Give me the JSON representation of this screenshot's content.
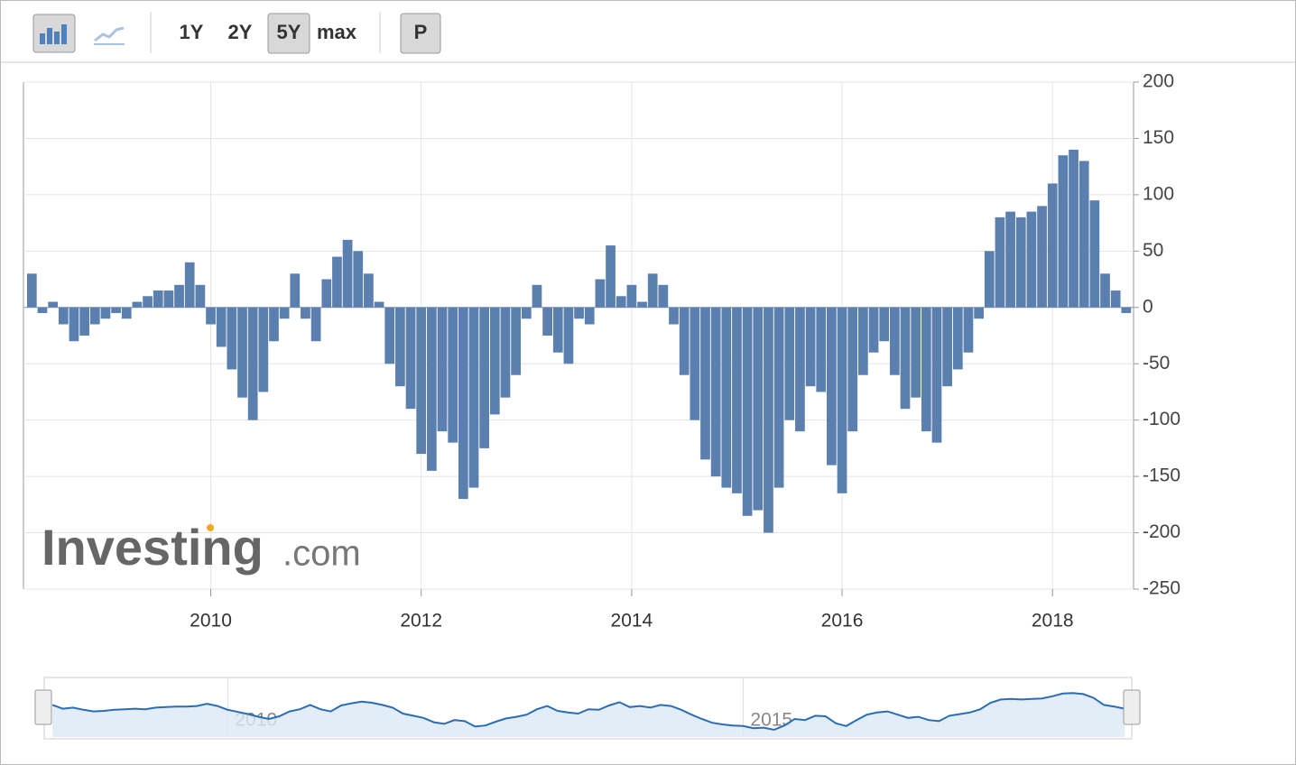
{
  "toolbar": {
    "buttons": [
      "1Y",
      "2Y",
      "5Y",
      "max"
    ],
    "print": "P"
  },
  "chart_data": {
    "type": "bar",
    "x": [
      2008.3,
      2008.4,
      2008.5,
      2008.6,
      2008.7,
      2008.8,
      2008.9,
      2009.0,
      2009.1,
      2009.2,
      2009.3,
      2009.4,
      2009.5,
      2009.6,
      2009.7,
      2009.8,
      2009.9,
      2010.0,
      2010.1,
      2010.2,
      2010.3,
      2010.4,
      2010.5,
      2010.6,
      2010.7,
      2010.8,
      2010.9,
      2011.0,
      2011.1,
      2011.2,
      2011.3,
      2011.4,
      2011.5,
      2011.6,
      2011.7,
      2011.8,
      2011.9,
      2012.0,
      2012.1,
      2012.2,
      2012.3,
      2012.4,
      2012.5,
      2012.6,
      2012.7,
      2012.8,
      2012.9,
      2013.0,
      2013.1,
      2013.2,
      2013.3,
      2013.4,
      2013.5,
      2013.6,
      2013.7,
      2013.8,
      2013.9,
      2014.0,
      2014.1,
      2014.2,
      2014.3,
      2014.4,
      2014.5,
      2014.6,
      2014.7,
      2014.8,
      2014.9,
      2015.0,
      2015.1,
      2015.2,
      2015.3,
      2015.4,
      2015.5,
      2015.6,
      2015.7,
      2015.8,
      2015.9,
      2016.0,
      2016.1,
      2016.2,
      2016.3,
      2016.4,
      2016.5,
      2016.6,
      2016.7,
      2016.8,
      2016.9,
      2017.0,
      2017.1,
      2017.2,
      2017.3,
      2017.4,
      2017.5,
      2017.6,
      2017.7,
      2017.8,
      2017.9,
      2018.0,
      2018.1,
      2018.2,
      2018.3,
      2018.4,
      2018.5,
      2018.6,
      2018.7
    ],
    "values": [
      30,
      -5,
      5,
      -15,
      -30,
      -25,
      -15,
      -10,
      -5,
      -10,
      5,
      10,
      15,
      15,
      20,
      40,
      20,
      -15,
      -35,
      -55,
      -80,
      -100,
      -75,
      -30,
      -10,
      30,
      -10,
      -30,
      25,
      45,
      60,
      50,
      30,
      5,
      -50,
      -70,
      -90,
      -130,
      -145,
      -110,
      -120,
      -170,
      -160,
      -125,
      -95,
      -80,
      -60,
      -10,
      20,
      -25,
      -40,
      -50,
      -10,
      -15,
      25,
      55,
      10,
      20,
      5,
      30,
      20,
      -15,
      -60,
      -100,
      -135,
      -150,
      -160,
      -165,
      -185,
      -180,
      -200,
      -160,
      -100,
      -110,
      -70,
      -75,
      -140,
      -165,
      -110,
      -60,
      -40,
      -30,
      -60,
      -90,
      -80,
      -110,
      -120,
      -70,
      -55,
      -40,
      -10,
      50,
      80,
      85,
      80,
      85,
      90,
      110,
      135,
      140,
      130,
      95,
      30,
      15,
      -5
    ],
    "color": "#5b7fae",
    "xlim": [
      2008.22,
      2018.77
    ],
    "ylim": [
      -250,
      200
    ],
    "xticks": [
      2010,
      2012,
      2014,
      2016,
      2018
    ],
    "yticks": [
      200,
      150,
      100,
      50,
      0,
      -50,
      -100,
      -150,
      -200,
      -250
    ],
    "grid": true,
    "watermark": {
      "brand": "Investing",
      "suffix": ".com"
    }
  },
  "navigator": {
    "xticks": [
      2010,
      2015
    ]
  }
}
